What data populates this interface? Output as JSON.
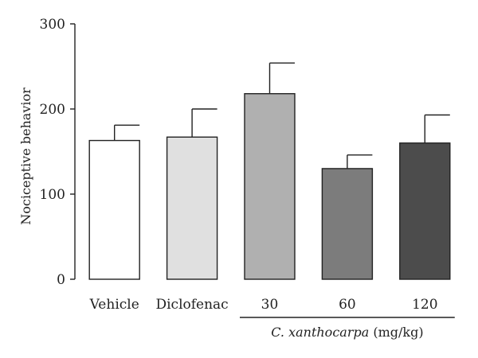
{
  "chart_data": {
    "type": "bar",
    "categories": [
      "Vehicle",
      "Diclofenac",
      "30",
      "60",
      "120"
    ],
    "values": [
      163,
      167,
      218,
      130,
      160
    ],
    "errors": [
      18,
      33,
      36,
      16,
      33
    ],
    "colors": [
      "#ffffff",
      "#e0e0e0",
      "#b0b0b0",
      "#7c7c7c",
      "#4c4c4c"
    ],
    "ylabel": "Nociceptive behavior",
    "ylim": [
      0,
      300
    ],
    "yticks": [
      0,
      100,
      200,
      300
    ],
    "ytick_labels": [
      "0",
      "100",
      "200",
      "300"
    ],
    "group_label": {
      "species": "C. xanthocarpa",
      "unit": " (mg/kg)",
      "categories": [
        "30",
        "60",
        "120"
      ]
    },
    "grid": false,
    "legend": "none"
  }
}
